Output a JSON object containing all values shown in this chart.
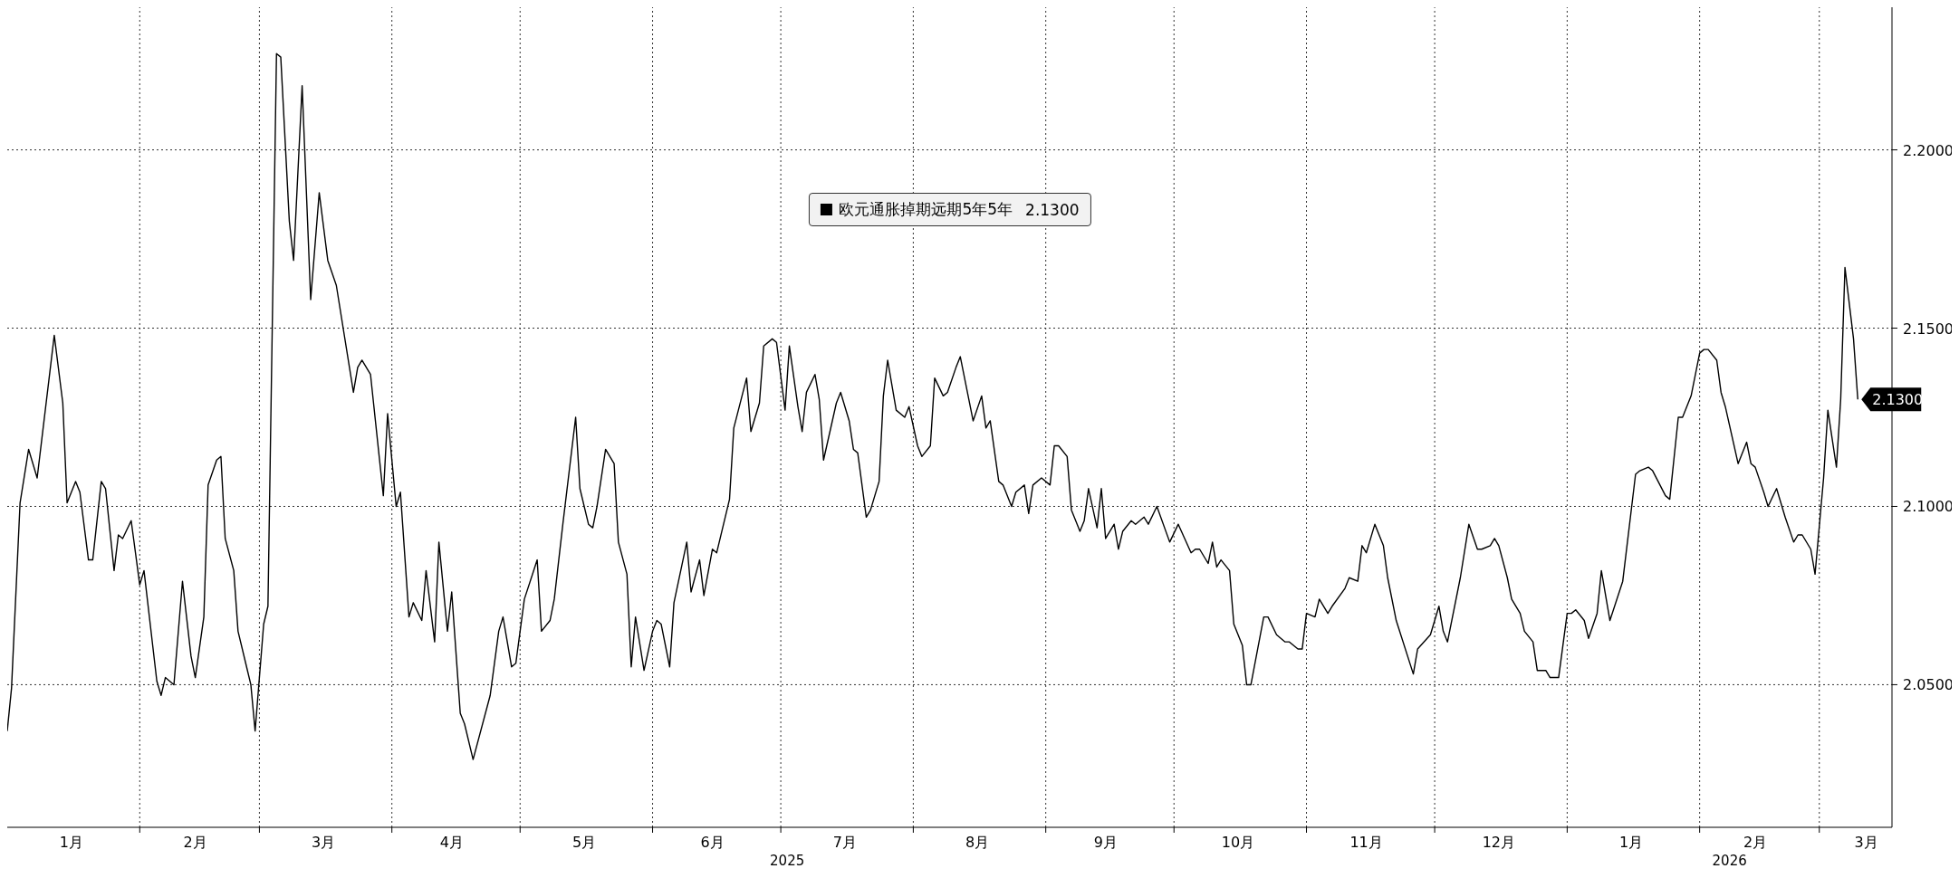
{
  "chart_data": {
    "type": "line",
    "x": [
      "2025-01-01",
      "2025-01-02",
      "2025-01-04",
      "2025-01-06",
      "2025-01-08",
      "2025-01-12",
      "2025-01-14",
      "2025-01-15",
      "2025-01-17",
      "2025-01-18",
      "2025-01-20",
      "2025-01-21",
      "2025-01-23",
      "2025-01-24",
      "2025-01-26",
      "2025-01-27",
      "2025-01-28",
      "2025-01-30",
      "2025-02-01",
      "2025-02-02",
      "2025-02-05",
      "2025-02-06",
      "2025-02-07",
      "2025-02-09",
      "2025-02-11",
      "2025-02-13",
      "2025-02-14",
      "2025-02-16",
      "2025-02-17",
      "2025-02-19",
      "2025-02-20",
      "2025-02-21",
      "2025-02-23",
      "2025-02-24",
      "2025-02-26",
      "2025-02-27",
      "2025-02-28",
      "2025-03-02",
      "2025-03-03",
      "2025-03-05",
      "2025-03-06",
      "2025-03-08",
      "2025-03-09",
      "2025-03-11",
      "2025-03-13",
      "2025-03-15",
      "2025-03-17",
      "2025-03-19",
      "2025-03-23",
      "2025-03-24",
      "2025-03-25",
      "2025-03-27",
      "2025-03-30",
      "2025-03-31",
      "2025-04-02",
      "2025-04-03",
      "2025-04-05",
      "2025-04-06",
      "2025-04-08",
      "2025-04-09",
      "2025-04-11",
      "2025-04-12",
      "2025-04-14",
      "2025-04-15",
      "2025-04-17",
      "2025-04-18",
      "2025-04-20",
      "2025-04-24",
      "2025-04-26",
      "2025-04-27",
      "2025-04-29",
      "2025-04-30",
      "2025-05-02",
      "2025-05-05",
      "2025-05-06",
      "2025-05-08",
      "2025-05-09",
      "2025-05-11",
      "2025-05-14",
      "2025-05-15",
      "2025-05-17",
      "2025-05-18",
      "2025-05-19",
      "2025-05-21",
      "2025-05-23",
      "2025-05-24",
      "2025-05-26",
      "2025-05-27",
      "2025-05-28",
      "2025-05-30",
      "2025-06-01",
      "2025-06-02",
      "2025-06-03",
      "2025-06-05",
      "2025-06-06",
      "2025-06-09",
      "2025-06-10",
      "2025-06-12",
      "2025-06-13",
      "2025-06-15",
      "2025-06-16",
      "2025-06-19",
      "2025-06-20",
      "2025-06-23",
      "2025-06-24",
      "2025-06-26",
      "2025-06-27",
      "2025-06-29",
      "2025-06-30",
      "2025-07-02",
      "2025-07-03",
      "2025-07-05",
      "2025-07-06",
      "2025-07-07",
      "2025-07-09",
      "2025-07-10",
      "2025-07-11",
      "2025-07-14",
      "2025-07-15",
      "2025-07-17",
      "2025-07-18",
      "2025-07-19",
      "2025-07-21",
      "2025-07-22",
      "2025-07-24",
      "2025-07-25",
      "2025-07-26",
      "2025-07-28",
      "2025-07-30",
      "2025-07-31",
      "2025-08-02",
      "2025-08-03",
      "2025-08-05",
      "2025-08-06",
      "2025-08-08",
      "2025-08-09",
      "2025-08-11",
      "2025-08-12",
      "2025-08-15",
      "2025-08-17",
      "2025-08-18",
      "2025-08-19",
      "2025-08-21",
      "2025-08-22",
      "2025-08-24",
      "2025-08-25",
      "2025-08-27",
      "2025-08-28",
      "2025-08-29",
      "2025-08-31",
      "2025-09-02",
      "2025-09-03",
      "2025-09-04",
      "2025-09-06",
      "2025-09-07",
      "2025-09-09",
      "2025-09-10",
      "2025-09-11",
      "2025-09-13",
      "2025-09-14",
      "2025-09-15",
      "2025-09-17",
      "2025-09-18",
      "2025-09-19",
      "2025-09-21",
      "2025-09-22",
      "2025-09-24",
      "2025-09-25",
      "2025-09-27",
      "2025-09-30",
      "2025-10-02",
      "2025-10-05",
      "2025-10-06",
      "2025-10-07",
      "2025-10-09",
      "2025-10-10",
      "2025-10-11",
      "2025-10-12",
      "2025-10-14",
      "2025-10-15",
      "2025-10-17",
      "2025-10-18",
      "2025-10-19",
      "2025-10-22",
      "2025-10-23",
      "2025-10-25",
      "2025-10-27",
      "2025-10-28",
      "2025-10-30",
      "2025-10-31",
      "2025-11-01",
      "2025-11-03",
      "2025-11-04",
      "2025-11-06",
      "2025-11-07",
      "2025-11-10",
      "2025-11-11",
      "2025-11-13",
      "2025-11-14",
      "2025-11-15",
      "2025-11-17",
      "2025-11-19",
      "2025-11-20",
      "2025-11-22",
      "2025-11-26",
      "2025-11-27",
      "2025-11-30",
      "2025-12-02",
      "2025-12-03",
      "2025-12-04",
      "2025-12-07",
      "2025-12-09",
      "2025-12-11",
      "2025-12-12",
      "2025-12-14",
      "2025-12-15",
      "2025-12-16",
      "2025-12-18",
      "2025-12-19",
      "2025-12-21",
      "2025-12-22",
      "2025-12-24",
      "2025-12-25",
      "2025-12-27",
      "2025-12-28",
      "2025-12-30",
      "2026-01-01",
      "2026-01-02",
      "2026-01-03",
      "2026-01-05",
      "2026-01-06",
      "2026-01-08",
      "2026-01-09",
      "2026-01-11",
      "2026-01-14",
      "2026-01-17",
      "2026-01-18",
      "2026-01-20",
      "2026-01-21",
      "2026-01-24",
      "2026-01-25",
      "2026-01-27",
      "2026-01-28",
      "2026-01-30",
      "2026-02-01",
      "2026-02-02",
      "2026-02-03",
      "2026-02-05",
      "2026-02-06",
      "2026-02-07",
      "2026-02-10",
      "2026-02-12",
      "2026-02-13",
      "2026-02-14",
      "2026-02-16",
      "2026-02-17",
      "2026-02-19",
      "2026-02-21",
      "2026-02-23",
      "2026-02-24",
      "2026-02-25",
      "2026-02-27",
      "2026-02-28",
      "2026-03-02",
      "2026-03-03",
      "2026-03-05",
      "2026-03-06",
      "2026-03-07",
      "2026-03-09",
      "2026-03-10"
    ],
    "series": [
      {
        "name": "欧元通胀掉期远期5年5年",
        "color": "#000000",
        "values": [
          2.037,
          2.049,
          2.101,
          2.116,
          2.108,
          2.148,
          2.129,
          2.101,
          2.107,
          2.104,
          2.085,
          2.085,
          2.107,
          2.105,
          2.082,
          2.092,
          2.091,
          2.096,
          2.078,
          2.082,
          2.051,
          2.047,
          2.052,
          2.05,
          2.079,
          2.058,
          2.052,
          2.069,
          2.106,
          2.113,
          2.114,
          2.091,
          2.082,
          2.065,
          2.055,
          2.05,
          2.037,
          2.067,
          2.072,
          2.227,
          2.226,
          2.18,
          2.169,
          2.218,
          2.158,
          2.188,
          2.169,
          2.162,
          2.132,
          2.139,
          2.141,
          2.137,
          2.103,
          2.126,
          2.1,
          2.104,
          2.069,
          2.073,
          2.068,
          2.082,
          2.062,
          2.09,
          2.065,
          2.076,
          2.042,
          2.039,
          2.029,
          2.047,
          2.065,
          2.069,
          2.055,
          2.056,
          2.074,
          2.085,
          2.065,
          2.068,
          2.074,
          2.095,
          2.125,
          2.105,
          2.095,
          2.094,
          2.1,
          2.116,
          2.112,
          2.09,
          2.081,
          2.055,
          2.069,
          2.054,
          2.065,
          2.068,
          2.067,
          2.055,
          2.073,
          2.09,
          2.076,
          2.085,
          2.075,
          2.088,
          2.087,
          2.102,
          2.122,
          2.136,
          2.121,
          2.129,
          2.145,
          2.147,
          2.146,
          2.127,
          2.145,
          2.128,
          2.121,
          2.132,
          2.137,
          2.13,
          2.113,
          2.129,
          2.132,
          2.124,
          2.116,
          2.115,
          2.097,
          2.099,
          2.107,
          2.131,
          2.141,
          2.127,
          2.125,
          2.128,
          2.117,
          2.114,
          2.117,
          2.136,
          2.131,
          2.132,
          2.139,
          2.142,
          2.124,
          2.131,
          2.122,
          2.124,
          2.107,
          2.106,
          2.1,
          2.104,
          2.106,
          2.098,
          2.106,
          2.108,
          2.106,
          2.117,
          2.117,
          2.114,
          2.099,
          2.093,
          2.096,
          2.105,
          2.094,
          2.105,
          2.091,
          2.095,
          2.088,
          2.093,
          2.096,
          2.095,
          2.097,
          2.095,
          2.1,
          2.09,
          2.095,
          2.087,
          2.088,
          2.088,
          2.084,
          2.09,
          2.083,
          2.085,
          2.082,
          2.067,
          2.061,
          2.05,
          2.05,
          2.069,
          2.069,
          2.064,
          2.062,
          2.062,
          2.06,
          2.06,
          2.07,
          2.069,
          2.074,
          2.07,
          2.072,
          2.077,
          2.08,
          2.079,
          2.089,
          2.087,
          2.095,
          2.089,
          2.08,
          2.068,
          2.053,
          2.06,
          2.064,
          2.072,
          2.065,
          2.062,
          2.08,
          2.095,
          2.088,
          2.088,
          2.089,
          2.091,
          2.089,
          2.08,
          2.074,
          2.07,
          2.065,
          2.062,
          2.054,
          2.054,
          2.052,
          2.052,
          2.07,
          2.07,
          2.071,
          2.068,
          2.063,
          2.07,
          2.082,
          2.068,
          2.079,
          2.109,
          2.11,
          2.111,
          2.11,
          2.103,
          2.102,
          2.125,
          2.125,
          2.131,
          2.143,
          2.144,
          2.144,
          2.141,
          2.132,
          2.128,
          2.112,
          2.118,
          2.112,
          2.111,
          2.104,
          2.1,
          2.105,
          2.097,
          2.09,
          2.092,
          2.092,
          2.088,
          2.081,
          2.108,
          2.127,
          2.111,
          2.13,
          2.167,
          2.147,
          2.13
        ],
        "value_labels": [
          null,
          null,
          null,
          null,
          null,
          null,
          null,
          null,
          null,
          null,
          null,
          null,
          null,
          null,
          null,
          null,
          null,
          null,
          null,
          null,
          null,
          null,
          null,
          null,
          null,
          null,
          null,
          null,
          null,
          null,
          null,
          null,
          null,
          null,
          null,
          null,
          null,
          null,
          null,
          null,
          null,
          null,
          null,
          null,
          null,
          null,
          null,
          null,
          null,
          null,
          null,
          null,
          null,
          null,
          null,
          null,
          null,
          null,
          null,
          null,
          null,
          null,
          null,
          null,
          null,
          null,
          null,
          null,
          null,
          null,
          null,
          null,
          null,
          null,
          null,
          null,
          null,
          null,
          null,
          null,
          null,
          null,
          null,
          null,
          null,
          null,
          null,
          null,
          null,
          null,
          null,
          null,
          null,
          null,
          null,
          null,
          null,
          null,
          null,
          null,
          null,
          null,
          null,
          null,
          null,
          null,
          null,
          null,
          null,
          null,
          null,
          null,
          null,
          null,
          null,
          null,
          null,
          null,
          null,
          null,
          null,
          null,
          null,
          null,
          null,
          null,
          null,
          null,
          null,
          null,
          null,
          null,
          null,
          null,
          null,
          null,
          null,
          null,
          null,
          null,
          null,
          null,
          null,
          null,
          null,
          null,
          null,
          null,
          null,
          null,
          null,
          null,
          null,
          null,
          null,
          null,
          null,
          null,
          null,
          null,
          null,
          null,
          null,
          null,
          null,
          null,
          null,
          null,
          null,
          null,
          null,
          null,
          null,
          null,
          null,
          null,
          null,
          null,
          null,
          null,
          null,
          null,
          null,
          null,
          null,
          null,
          null,
          null,
          null,
          null,
          null,
          null,
          null,
          null,
          null,
          null,
          null,
          null,
          null,
          null,
          null,
          null,
          null,
          null,
          null,
          null,
          null,
          null,
          null,
          null,
          null,
          null,
          null,
          null,
          null,
          null,
          null,
          null,
          null,
          null,
          null,
          null,
          null,
          null,
          null,
          null,
          null,
          null,
          null,
          null,
          null,
          null,
          null,
          null,
          null,
          null,
          null,
          null,
          null,
          null,
          null,
          null,
          null,
          null,
          null,
          null,
          null,
          null,
          null,
          null,
          null,
          null,
          null,
          null,
          null,
          null,
          null,
          null,
          null,
          null,
          null,
          null,
          null,
          null,
          null,
          null,
          null,
          null,
          null,
          "2.1300"
        ]
      }
    ],
    "xlim": [
      "2025-01-01",
      "2026-03-18"
    ],
    "xticks": [
      {
        "value": "2025-01-16",
        "label": "1月"
      },
      {
        "value": "2025-02-01",
        "label": null
      },
      {
        "value": "2025-02-14",
        "label": "2月"
      },
      {
        "value": "2025-03-01",
        "label": null
      },
      {
        "value": "2025-03-16",
        "label": "3月"
      },
      {
        "value": "2025-04-01",
        "label": null
      },
      {
        "value": "2025-04-15",
        "label": "4月"
      },
      {
        "value": "2025-05-01",
        "label": null
      },
      {
        "value": "2025-05-16",
        "label": "5月"
      },
      {
        "value": "2025-06-01",
        "label": null
      },
      {
        "value": "2025-06-15",
        "label": "6月"
      },
      {
        "value": "2025-07-01",
        "label": null
      },
      {
        "value": "2025-07-16",
        "label": "7月"
      },
      {
        "value": "2025-08-01",
        "label": null
      },
      {
        "value": "2025-08-16",
        "label": "8月"
      },
      {
        "value": "2025-09-01",
        "label": null
      },
      {
        "value": "2025-09-15",
        "label": "9月"
      },
      {
        "value": "2025-10-01",
        "label": null
      },
      {
        "value": "2025-10-16",
        "label": "10月"
      },
      {
        "value": "2025-11-01",
        "label": null
      },
      {
        "value": "2025-11-15",
        "label": "11月"
      },
      {
        "value": "2025-12-01",
        "label": null
      },
      {
        "value": "2025-12-16",
        "label": "12月"
      },
      {
        "value": "2026-01-01",
        "label": null
      },
      {
        "value": "2026-01-16",
        "label": "1月"
      },
      {
        "value": "2026-02-01",
        "label": null
      },
      {
        "value": "2026-02-14",
        "label": "2月"
      },
      {
        "value": "2026-03-01",
        "label": null
      },
      {
        "value": "2026-03-12",
        "label": "3月"
      }
    ],
    "ylim": [
      2.01,
      2.24
    ],
    "yticks": [
      {
        "value": 2.05,
        "label": "2.0500"
      },
      {
        "value": 2.1,
        "label": "2.1000"
      },
      {
        "value": 2.15,
        "label": "2.1500"
      },
      {
        "value": 2.2,
        "label": "2.2000"
      }
    ],
    "annotations": [
      "2025",
      "2026"
    ],
    "grid": true,
    "legend": "top",
    "marker": "none",
    "line_style": "solid"
  }
}
